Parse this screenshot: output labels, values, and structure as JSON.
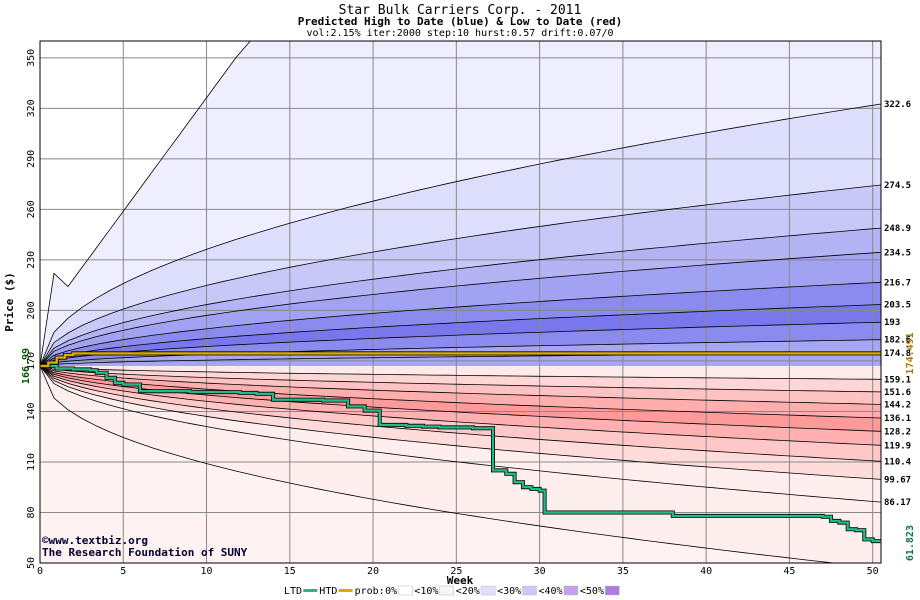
{
  "chart_data": {
    "type": "area",
    "title": "Star Bulk Carriers Corp. - 2011",
    "subtitle": "Predicted High to Date (blue) &  Low to Date (red)",
    "params": "vol:2.15% iter:2000 step:10 hurst:0.57 drift:0.07/0",
    "xlabel": "Week",
    "ylabel": "Price ($)",
    "xlim": [
      0,
      50.5
    ],
    "ylim": [
      50,
      360
    ],
    "xticks": [
      0,
      5,
      10,
      15,
      20,
      25,
      30,
      35,
      40,
      45,
      50
    ],
    "yticks": [
      50,
      80,
      110,
      140,
      170,
      200,
      230,
      260,
      290,
      320,
      350
    ],
    "grid": true,
    "start_price": 166.99,
    "start_price_label": "166.99",
    "current_price": 174.491,
    "current_price_label": "174.491",
    "ltd_last": 61.823,
    "ltd_last_label": "61.823",
    "high_quantiles": [
      {
        "end_label": "322.6",
        "end": 322.6
      },
      {
        "end_label": "274.5",
        "end": 274.5
      },
      {
        "end_label": "248.9",
        "end": 248.9
      },
      {
        "end_label": "234.5",
        "end": 234.5
      },
      {
        "end_label": "216.7",
        "end": 216.7
      },
      {
        "end_label": "203.5",
        "end": 203.5
      },
      {
        "end_label": "193",
        "end": 193
      },
      {
        "end_label": "182.6",
        "end": 182.6
      },
      {
        "end_label": "174.8",
        "end": 174.8
      }
    ],
    "low_quantiles": [
      {
        "end_label": "159.1",
        "end": 159.1
      },
      {
        "end_label": "151.6",
        "end": 151.6
      },
      {
        "end_label": "144.2",
        "end": 144.2
      },
      {
        "end_label": "136.1",
        "end": 136.1
      },
      {
        "end_label": "128.2",
        "end": 128.2
      },
      {
        "end_label": "119.9",
        "end": 119.9
      },
      {
        "end_label": "110.4",
        "end": 110.4
      },
      {
        "end_label": "99.67",
        "end": 99.67
      },
      {
        "end_label": "86.17",
        "end": 86.17
      }
    ],
    "high_band_fills": [
      "#eeeeff",
      "#ddddfc",
      "#c8c8f8",
      "#b4b4f4",
      "#a2a2f2",
      "#8a8aef",
      "#7878ec",
      "#8a8aef",
      "#a6a6f2"
    ],
    "low_band_fills": [
      "#ffeaea",
      "#ffd6d6",
      "#ffc2c2",
      "#ffaeae",
      "#ff9a9a",
      "#ffb0b0",
      "#ffc8c8",
      "#ffdcdc",
      "#ffeeee"
    ],
    "series": [
      {
        "name": "LTD",
        "color": "#22bb88",
        "x": [
          0,
          1,
          2,
          3,
          3.4,
          4,
          4.5,
          5,
          6,
          7,
          8,
          9,
          10,
          11,
          12,
          13,
          14,
          15,
          16,
          17,
          18,
          18.5,
          19,
          19.5,
          20,
          20.4,
          21,
          22,
          23,
          24,
          25,
          26,
          27,
          27.2,
          28,
          28.5,
          29,
          29.5,
          30,
          30.3,
          32,
          34,
          36,
          38,
          40,
          42,
          44,
          46,
          47,
          47.5,
          48,
          48.5,
          49,
          49.5,
          50,
          50.5
        ],
        "y": [
          166.99,
          165.5,
          165,
          164.5,
          163,
          160,
          157,
          156,
          152,
          152,
          152,
          151.5,
          151.5,
          151.5,
          151,
          150.5,
          147,
          147,
          147,
          146.5,
          146.5,
          143,
          143,
          140.5,
          140.5,
          132,
          132,
          131.5,
          131,
          130.5,
          130.5,
          130,
          130,
          105,
          103,
          98,
          95,
          94,
          93,
          80,
          80,
          80,
          80,
          78,
          78,
          78,
          78,
          78,
          77.5,
          75,
          74,
          70,
          69.5,
          64,
          63,
          61.823
        ]
      },
      {
        "name": "HTD",
        "color": "#ddaa00",
        "x": [
          0,
          0.5,
          1,
          1.5,
          2,
          8,
          50.5
        ],
        "y": [
          166.99,
          169,
          172,
          173.5,
          174.5,
          174.491,
          174.491
        ]
      }
    ],
    "legend": {
      "placement": "bottom",
      "ltd": "LTD",
      "htd": "HTD",
      "prob_prefix": "prob:",
      "items": [
        {
          "label": "0%",
          "color": "#ffffff"
        },
        {
          "label": "<10%",
          "color": "#f4f4ff"
        },
        {
          "label": "<20%",
          "color": "#e0e0fc"
        },
        {
          "label": "<30%",
          "color": "#ccc8f4"
        },
        {
          "label": "<40%",
          "color": "#c4a0e8"
        },
        {
          "label": "<50%",
          "color": "#b07ae0"
        }
      ]
    },
    "credits": [
      "©www.textbiz.org",
      "The Research Foundation of SUNY"
    ]
  }
}
